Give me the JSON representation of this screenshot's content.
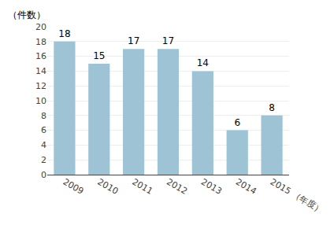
{
  "chart_data": {
    "type": "bar",
    "ylabel": "（件数）",
    "categories": [
      "2009",
      "2010",
      "2011",
      "2012",
      "2013",
      "2014",
      "2015 （年度）"
    ],
    "values": [
      18,
      15,
      17,
      17,
      14,
      6,
      8
    ],
    "color": "#9DC3D4",
    "ylim": [
      0,
      20
    ],
    "yticks": [
      0,
      2,
      4,
      6,
      8,
      10,
      12,
      14,
      16,
      18,
      20
    ],
    "grid": true,
    "data_labels": true
  }
}
